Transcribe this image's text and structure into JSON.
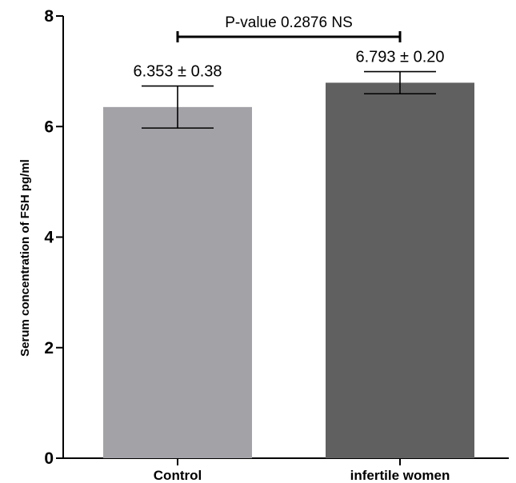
{
  "chart_data": {
    "type": "bar",
    "categories": [
      "Control",
      "infertile women"
    ],
    "values": [
      6.353,
      6.793
    ],
    "errors": [
      0.38,
      0.2
    ],
    "bar_colors": [
      "#a3a2a7",
      "#606060"
    ],
    "data_labels": [
      "6.353 ± 0.38",
      "6.793 ± 0.20"
    ],
    "ylabel": "Serum concentration of  FSH pg/ml",
    "ylim": [
      0,
      8
    ],
    "yticks": [
      "0",
      "2",
      "4",
      "6",
      "8"
    ],
    "significance": {
      "label": "P-value 0.2876 NS",
      "between": [
        0,
        1
      ]
    },
    "grid": false
  }
}
